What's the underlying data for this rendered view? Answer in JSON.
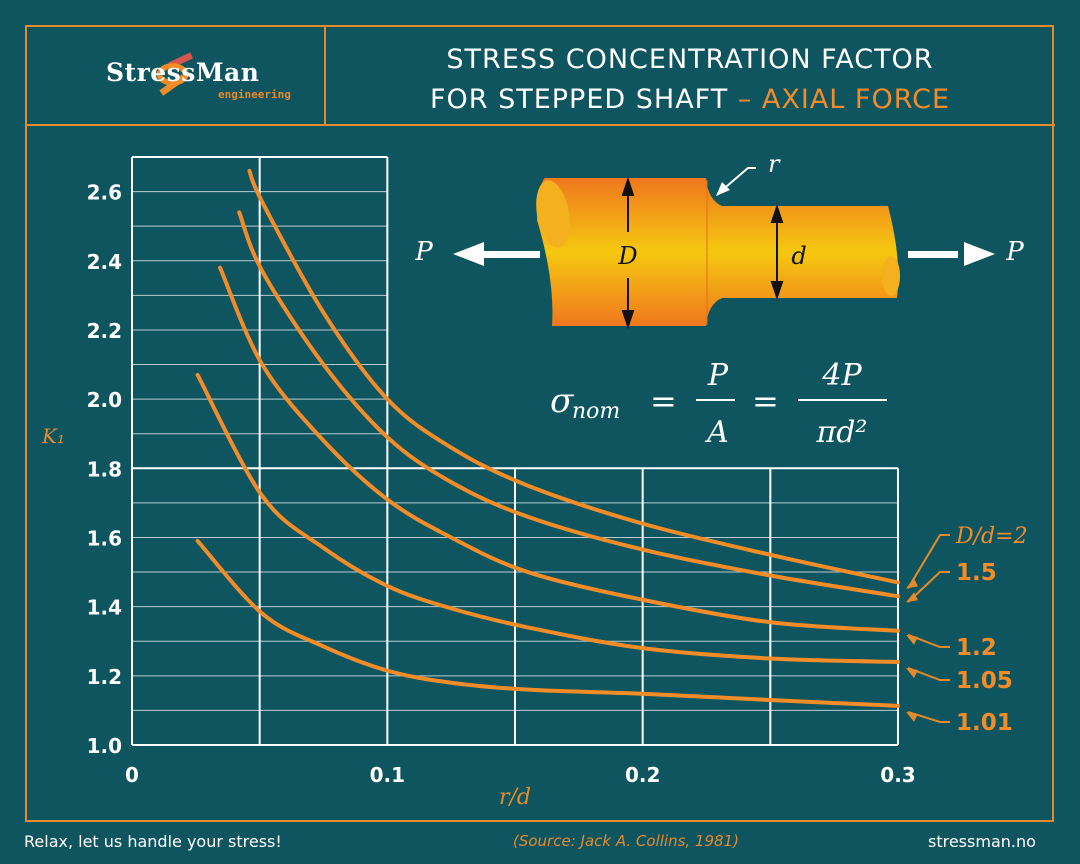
{
  "header": {
    "brand": "StressMan",
    "brand_sub": "engineering",
    "title_line1": "STRESS CONCENTRATION FACTOR",
    "title_line2": "FOR STEPPED SHAFT",
    "title_accent": "– AXIAL FORCE"
  },
  "diagram": {
    "load_left": "P",
    "load_right": "P",
    "big_diameter": "D",
    "small_diameter": "d",
    "fillet": "r",
    "formula": {
      "lhs": "σ",
      "lhs_sub": "nom",
      "eq": "=",
      "num1": "P",
      "den1": "A",
      "num2": "4P",
      "den2": "πd²"
    }
  },
  "footer": {
    "slogan": "Relax, let us handle your  stress!",
    "source": "(Source: Jack A. Collins, 1981)",
    "website": "stressman.no"
  },
  "colors": {
    "background": "#0f5560",
    "accent": "#e58a2a",
    "curve": "#f28c28",
    "grid": "#ffffff"
  },
  "chart_data": {
    "type": "line",
    "xlabel": "r/d",
    "ylabel": "K₁",
    "xlim": [
      0,
      0.3
    ],
    "ylim": [
      1.0,
      2.7
    ],
    "grid": true,
    "x_ticks": [
      "0",
      "0.1",
      "0.2",
      "0.3"
    ],
    "y_ticks": [
      "1.0",
      "1.2",
      "1.4",
      "1.6",
      "1.8",
      "2.0",
      "2.2",
      "2.4",
      "2.6"
    ],
    "legend_placement": "right (inline labels)",
    "series": [
      {
        "name": "D/d=2",
        "points": [
          [
            0.046,
            2.66
          ],
          [
            0.051,
            2.57
          ],
          [
            0.075,
            2.25
          ],
          [
            0.1,
            2.0
          ],
          [
            0.125,
            1.86
          ],
          [
            0.155,
            1.75
          ],
          [
            0.2,
            1.64
          ],
          [
            0.25,
            1.55
          ],
          [
            0.3,
            1.47
          ]
        ]
      },
      {
        "name": "1.5",
        "points": [
          [
            0.042,
            2.54
          ],
          [
            0.051,
            2.37
          ],
          [
            0.075,
            2.1
          ],
          [
            0.1,
            1.89
          ],
          [
            0.125,
            1.76
          ],
          [
            0.155,
            1.66
          ],
          [
            0.2,
            1.565
          ],
          [
            0.25,
            1.49
          ],
          [
            0.3,
            1.43
          ]
        ]
      },
      {
        "name": "1.2",
        "points": [
          [
            0.0345,
            2.38
          ],
          [
            0.051,
            2.1
          ],
          [
            0.075,
            1.88
          ],
          [
            0.1,
            1.71
          ],
          [
            0.125,
            1.6
          ],
          [
            0.155,
            1.5
          ],
          [
            0.2,
            1.42
          ],
          [
            0.25,
            1.355
          ],
          [
            0.3,
            1.33
          ]
        ]
      },
      {
        "name": "1.05",
        "points": [
          [
            0.0257,
            2.07
          ],
          [
            0.051,
            1.72
          ],
          [
            0.075,
            1.57
          ],
          [
            0.1,
            1.46
          ],
          [
            0.125,
            1.395
          ],
          [
            0.155,
            1.34
          ],
          [
            0.2,
            1.28
          ],
          [
            0.25,
            1.25
          ],
          [
            0.3,
            1.24
          ]
        ]
      },
      {
        "name": "1.01",
        "points": [
          [
            0.0257,
            1.59
          ],
          [
            0.051,
            1.38
          ],
          [
            0.075,
            1.285
          ],
          [
            0.1,
            1.215
          ],
          [
            0.125,
            1.18
          ],
          [
            0.155,
            1.16
          ],
          [
            0.2,
            1.148
          ],
          [
            0.25,
            1.13
          ],
          [
            0.3,
            1.113
          ]
        ]
      }
    ]
  }
}
